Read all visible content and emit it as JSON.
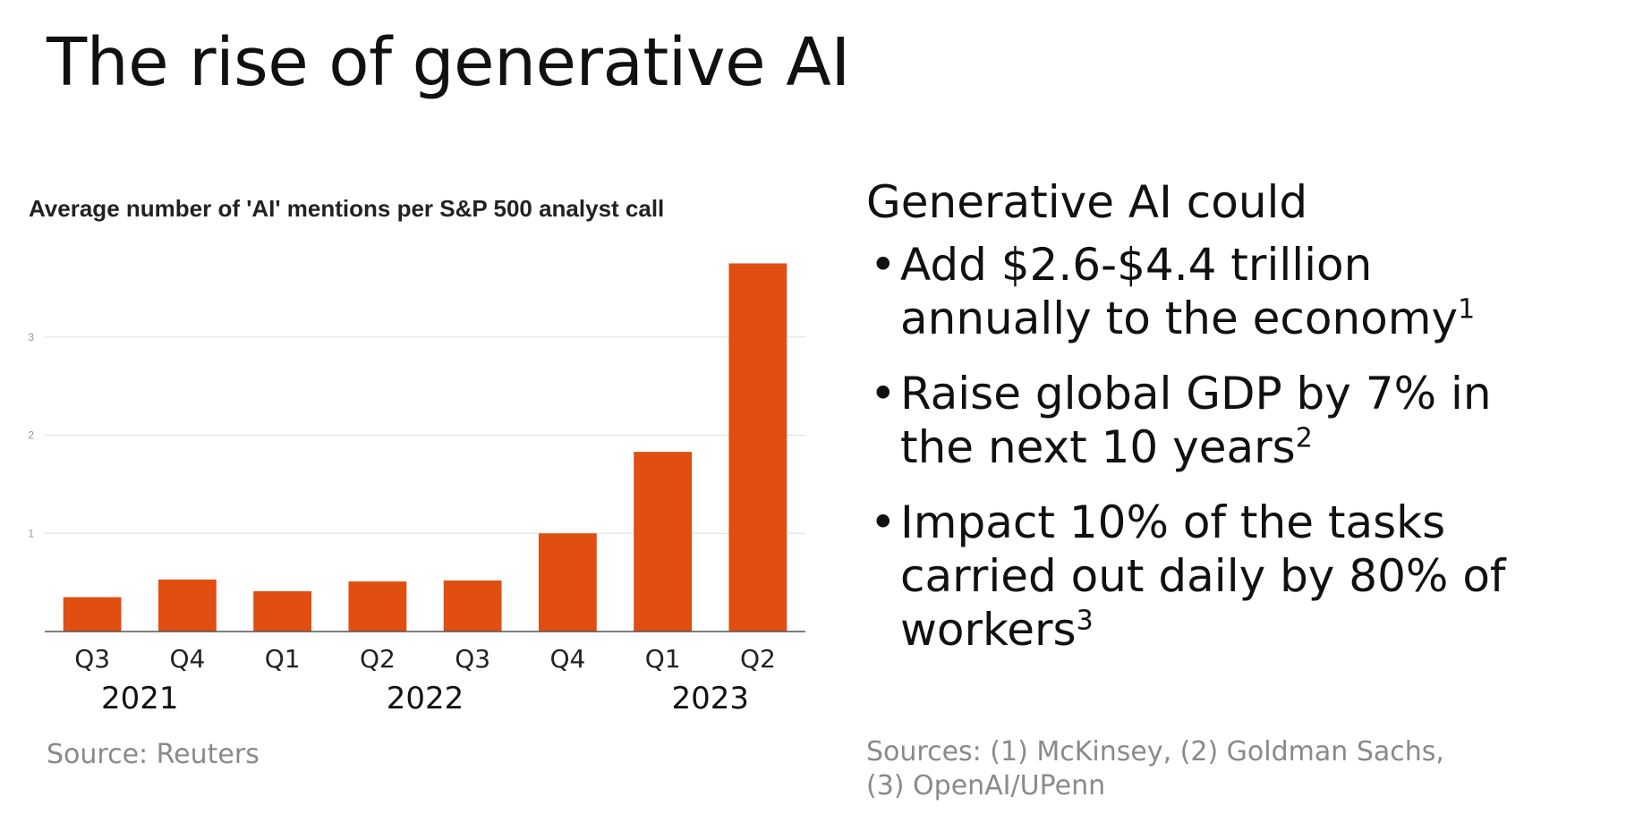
{
  "slide": {
    "title": "The rise of generative AI"
  },
  "chart_data": {
    "type": "bar",
    "title": "Average number of 'AI' mentions per S&P 500 analyst call",
    "categories": [
      "Q3",
      "Q4",
      "Q1",
      "Q2",
      "Q3",
      "Q4",
      "Q1",
      "Q2"
    ],
    "group_labels": [
      {
        "label": "2021",
        "from": 0,
        "to": 1
      },
      {
        "label": "2022",
        "from": 2,
        "to": 5
      },
      {
        "label": "2023",
        "from": 6,
        "to": 7
      }
    ],
    "values": [
      0.35,
      0.53,
      0.41,
      0.51,
      0.52,
      1.0,
      1.83,
      3.75
    ],
    "yticks": [
      1,
      2,
      3
    ],
    "ylim": [
      0,
      3.9
    ],
    "grid": true,
    "bar_color": "#e04e12",
    "source": "Source: Reuters"
  },
  "right": {
    "heading": "Generative AI could",
    "bullets": [
      {
        "lines": [
          "Add $2.6-$4.4 trillion",
          "annually to the economy"
        ],
        "sup": "1"
      },
      {
        "lines": [
          "Raise global GDP by 7% in",
          "the next 10 years"
        ],
        "sup": "2"
      },
      {
        "lines": [
          "Impact 10% of the tasks",
          "carried out daily by 80% of",
          "workers"
        ],
        "sup": "3"
      }
    ],
    "sources": [
      "Sources: (1) McKinsey, (2) Goldman Sachs,",
      "(3) OpenAI/UPenn"
    ]
  },
  "colors": {
    "accent": "#e04e12",
    "muted_text": "#8a8a8a",
    "grid": "#dddddd"
  }
}
